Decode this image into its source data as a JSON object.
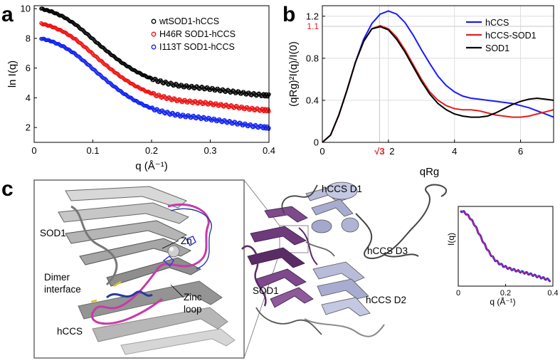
{
  "panel_letters": {
    "a": "a",
    "b": "b",
    "c": "c"
  },
  "chart_data": [
    {
      "type": "scatter",
      "panel": "a",
      "xlabel": "q (Å⁻¹)",
      "ylabel": "ln I(q)",
      "xlim": [
        0,
        0.4
      ],
      "ylim": [
        1,
        10.2
      ],
      "xticks": [
        0,
        0.1,
        0.2,
        0.3,
        0.4
      ],
      "xtick_labels": [
        "0",
        "0.1",
        "0.2",
        "0.3",
        "0.4"
      ],
      "yticks": [
        2,
        4,
        6,
        8,
        10
      ],
      "ytick_labels": [
        "2",
        "4",
        "6",
        "8",
        "10"
      ],
      "grid": false,
      "legend_position": "top-right",
      "x": [
        0.012,
        0.03,
        0.05,
        0.07,
        0.09,
        0.11,
        0.13,
        0.15,
        0.17,
        0.19,
        0.21,
        0.23,
        0.25,
        0.27,
        0.29,
        0.31,
        0.33,
        0.35,
        0.37,
        0.39,
        0.4
      ],
      "series": [
        {
          "name": "wtSOD1-hCCS",
          "color": "#000000",
          "values": [
            10.0,
            9.8,
            9.45,
            8.95,
            8.3,
            7.6,
            6.95,
            6.35,
            5.85,
            5.45,
            5.15,
            4.95,
            4.8,
            4.72,
            4.65,
            4.55,
            4.45,
            4.35,
            4.25,
            4.18,
            4.15
          ]
        },
        {
          "name": "H46R SOD1-hCCS",
          "color": "#ee1111",
          "values": [
            9.0,
            8.8,
            8.45,
            7.95,
            7.3,
            6.6,
            5.95,
            5.35,
            4.85,
            4.45,
            4.15,
            3.95,
            3.8,
            3.72,
            3.65,
            3.55,
            3.45,
            3.35,
            3.25,
            3.18,
            3.15
          ]
        },
        {
          "name": "I113T SOD1-hCCS",
          "color": "#1122ee",
          "values": [
            8.0,
            7.8,
            7.45,
            6.95,
            6.3,
            5.6,
            4.95,
            4.35,
            3.85,
            3.45,
            3.15,
            2.95,
            2.8,
            2.72,
            2.62,
            2.5,
            2.38,
            2.25,
            2.12,
            2.02,
            1.98
          ]
        }
      ]
    },
    {
      "type": "line",
      "panel": "b",
      "xlabel": "qRg",
      "ylabel": "(qRg)²I(q)/I(0)",
      "xlim": [
        0,
        7
      ],
      "ylim": [
        0,
        1.3
      ],
      "xticks": [
        0,
        2,
        4,
        6
      ],
      "xtick_labels": [
        "0",
        "2",
        "4",
        "6"
      ],
      "yticks": [
        0,
        0.4,
        0.8,
        1.2
      ],
      "ytick_labels": [
        "0",
        "0.4",
        "0.8",
        "1.2"
      ],
      "grid": true,
      "legend_position": "top-right",
      "reference_lines": {
        "x": 1.732,
        "x_label": "√3",
        "y": 1.104,
        "y_label": "1.1",
        "color": "#e0201c"
      },
      "x": [
        0,
        0.25,
        0.5,
        0.75,
        1.0,
        1.25,
        1.5,
        1.75,
        2.0,
        2.25,
        2.5,
        2.75,
        3.0,
        3.25,
        3.5,
        3.75,
        4.0,
        4.25,
        4.5,
        4.75,
        5.0,
        5.25,
        5.5,
        5.75,
        6.0,
        6.25,
        6.5,
        6.75,
        7.0
      ],
      "series": [
        {
          "name": "hCCS",
          "color": "#1a1aff",
          "values": [
            0,
            0.07,
            0.26,
            0.5,
            0.76,
            0.98,
            1.13,
            1.22,
            1.25,
            1.22,
            1.14,
            1.02,
            0.88,
            0.75,
            0.63,
            0.54,
            0.48,
            0.44,
            0.42,
            0.41,
            0.4,
            0.39,
            0.38,
            0.37,
            0.35,
            0.33,
            0.3,
            0.27,
            0.24
          ]
        },
        {
          "name": "hCCS-SOD1",
          "color": "#e0201c",
          "values": [
            0,
            0.07,
            0.26,
            0.5,
            0.76,
            0.96,
            1.08,
            1.11,
            1.08,
            1.0,
            0.88,
            0.74,
            0.6,
            0.48,
            0.4,
            0.35,
            0.32,
            0.31,
            0.31,
            0.3,
            0.28,
            0.26,
            0.25,
            0.24,
            0.24,
            0.25,
            0.27,
            0.29,
            0.31
          ]
        },
        {
          "name": "SOD1",
          "color": "#000000",
          "values": [
            0,
            0.07,
            0.26,
            0.5,
            0.76,
            0.96,
            1.08,
            1.1,
            1.07,
            0.98,
            0.86,
            0.72,
            0.58,
            0.46,
            0.37,
            0.31,
            0.27,
            0.25,
            0.24,
            0.24,
            0.25,
            0.28,
            0.32,
            0.36,
            0.39,
            0.41,
            0.42,
            0.41,
            0.4
          ]
        }
      ]
    },
    {
      "type": "line",
      "panel": "c-inset",
      "xlabel": "q (Å⁻¹)",
      "ylabel": "I(q)",
      "xlim": [
        0,
        0.4
      ],
      "xticks": [
        0,
        0.2,
        0.4
      ],
      "xtick_labels": [
        "0",
        "0.2",
        "0.4"
      ],
      "grid": false,
      "x": [
        0.01,
        0.03,
        0.05,
        0.07,
        0.09,
        0.11,
        0.13,
        0.15,
        0.17,
        0.19,
        0.21,
        0.23,
        0.25,
        0.27,
        0.29,
        0.31,
        0.33,
        0.35,
        0.37,
        0.39
      ],
      "series": [
        {
          "color": "#2233dd",
          "values": [
            1.0,
            0.97,
            0.9,
            0.8,
            0.67,
            0.54,
            0.43,
            0.34,
            0.28,
            0.24,
            0.21,
            0.19,
            0.17,
            0.155,
            0.14,
            0.12,
            0.1,
            0.08,
            0.06,
            0.04
          ]
        },
        {
          "color": "#cc2277",
          "values": [
            1.0,
            0.97,
            0.9,
            0.8,
            0.67,
            0.54,
            0.43,
            0.34,
            0.28,
            0.24,
            0.21,
            0.19,
            0.17,
            0.155,
            0.14,
            0.12,
            0.1,
            0.08,
            0.06,
            0.04
          ]
        }
      ]
    }
  ],
  "structure": {
    "left_labels": {
      "sod1": "SOD1",
      "zn": "Zn",
      "dimer_line1": "Dimer",
      "dimer_line2": "interface",
      "zinc_line1": "Zinc",
      "zinc_line2": "loop",
      "hccs": "hCCS"
    },
    "right_labels": {
      "hccs_d1": "hCCS D1",
      "hccs_d2": "hCCS D2",
      "hccs_d3": "hCCS D3",
      "sod1": "SOD1"
    },
    "colors": {
      "sod1": "#6e3a7a",
      "hccs": "#b8bcd8",
      "loop": "#c83aa8",
      "loop_blue": "#2a3a9a"
    }
  }
}
